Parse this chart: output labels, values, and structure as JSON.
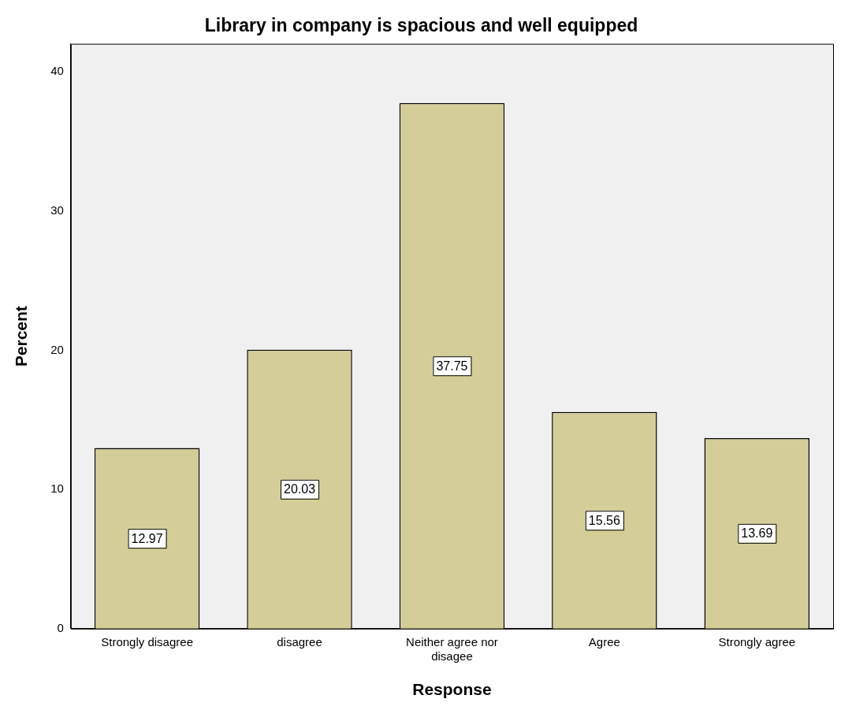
{
  "chart_data": {
    "type": "bar",
    "title": "Library in company is spacious and well equipped",
    "xlabel": "Response",
    "ylabel": "Percent",
    "categories": [
      "Strongly disagree",
      "disagree",
      "Neither agree nor disagee",
      "Agree",
      "Strongly agree"
    ],
    "values": [
      12.97,
      20.03,
      37.75,
      15.56,
      13.69
    ],
    "color": "#d3ce97",
    "ylim": [
      0,
      42
    ],
    "yticks": [
      0,
      10,
      20,
      30,
      40
    ],
    "grid": false,
    "legend": false,
    "data_labels": true
  }
}
